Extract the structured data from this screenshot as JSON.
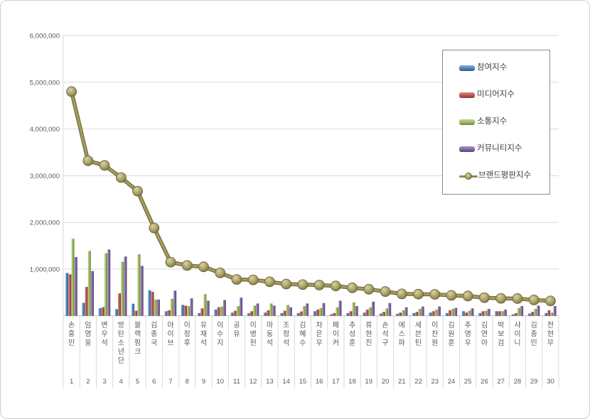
{
  "chart_data": {
    "type": "bar",
    "title": "",
    "xlabel": "",
    "ylabel": "",
    "ylim": [
      0,
      6000000
    ],
    "grid": true,
    "legend_position": "top-right",
    "categories": [
      "손흥민",
      "임영웅",
      "변우석",
      "방탄소년단",
      "블랙핑크",
      "김종국",
      "아이브",
      "이정후",
      "유재석",
      "이수지",
      "공유",
      "이병헌",
      "마동석",
      "조정석",
      "김혜수",
      "차은우",
      "페이커",
      "추성훈",
      "류현진",
      "손석구",
      "에스파",
      "세븐틴",
      "이찬원",
      "김원훈",
      "추영우",
      "김연아",
      "박보검",
      "샤이니",
      "김종민",
      "전현무"
    ],
    "ranks": [
      "1",
      "2",
      "3",
      "4",
      "5",
      "6",
      "7",
      "8",
      "9",
      "10",
      "11",
      "12",
      "13",
      "14",
      "15",
      "16",
      "17",
      "18",
      "19",
      "20",
      "21",
      "22",
      "23",
      "24",
      "25",
      "26",
      "27",
      "28",
      "29",
      "30"
    ],
    "ytick_values": [
      1000000,
      2000000,
      3000000,
      4000000,
      5000000,
      6000000
    ],
    "ytick_labels": [
      "1,000,000",
      "2,000,000",
      "3,000,000",
      "4,000,000",
      "5,000,000",
      "6,000,000"
    ],
    "series": [
      {
        "name": "참여지수",
        "type": "bar",
        "color": "#4f81bd",
        "values": [
          920000,
          280000,
          165000,
          145000,
          260000,
          550000,
          100000,
          235000,
          60000,
          135000,
          70000,
          60000,
          70000,
          60000,
          60000,
          100000,
          35000,
          60000,
          70000,
          50000,
          45000,
          60000,
          70000,
          60000,
          100000,
          60000,
          100000,
          35000,
          50000,
          60000
        ]
      },
      {
        "name": "미디어지수",
        "type": "bar",
        "color": "#c0504d",
        "values": [
          890000,
          620000,
          185000,
          480000,
          110000,
          515000,
          120000,
          220000,
          160000,
          185000,
          110000,
          100000,
          120000,
          110000,
          95000,
          135000,
          60000,
          100000,
          135000,
          85000,
          70000,
          85000,
          100000,
          120000,
          70000,
          100000,
          100000,
          60000,
          85000,
          120000
        ]
      },
      {
        "name": "소통지수",
        "type": "bar",
        "color": "#9bbb59",
        "values": [
          1650000,
          1390000,
          1340000,
          1160000,
          1320000,
          350000,
          365000,
          210000,
          465000,
          200000,
          210000,
          220000,
          265000,
          235000,
          210000,
          170000,
          185000,
          290000,
          185000,
          160000,
          120000,
          150000,
          135000,
          150000,
          110000,
          110000,
          100000,
          170000,
          150000,
          70000
        ]
      },
      {
        "name": "커뮤니티지수",
        "type": "bar",
        "color": "#8064a2",
        "values": [
          1260000,
          960000,
          1420000,
          1270000,
          1070000,
          350000,
          540000,
          375000,
          325000,
          340000,
          390000,
          265000,
          220000,
          185000,
          265000,
          275000,
          325000,
          210000,
          305000,
          275000,
          185000,
          200000,
          200000,
          170000,
          160000,
          150000,
          135000,
          210000,
          220000,
          210000
        ]
      },
      {
        "name": "브랜드평판지수",
        "type": "line",
        "color": "#948e4f",
        "values": [
          4800000,
          3320000,
          3220000,
          2960000,
          2670000,
          1880000,
          1150000,
          1080000,
          1050000,
          920000,
          780000,
          770000,
          730000,
          680000,
          670000,
          660000,
          640000,
          600000,
          570000,
          520000,
          470000,
          465000,
          460000,
          440000,
          425000,
          390000,
          375000,
          370000,
          340000,
          320000
        ]
      }
    ]
  }
}
